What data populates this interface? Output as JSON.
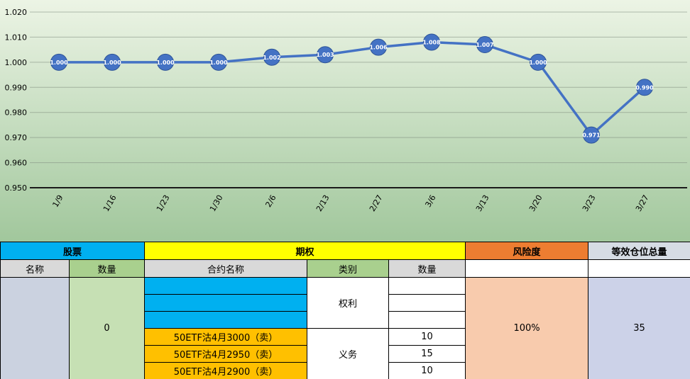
{
  "colors": {
    "line": "#4472C4",
    "gradTop": "#ECF4E5",
    "gradBottom": "#A1C79C",
    "cyan": "#00B0F0",
    "yellow": "#FFFF00",
    "orange": "#ED7D31",
    "headerBluegray": "#D6DCE4",
    "subGray": "#D9D9D9",
    "subGreen": "#A9D08E",
    "dataGreen": "#C6E0B4",
    "gold": "#FFC000",
    "riskPeach": "#F8CBAD",
    "totalLavender": "#CCD2E8",
    "stockLavender": "#CBD2E0"
  },
  "chart_data": {
    "type": "line",
    "title": "",
    "xlabel": "",
    "ylabel": "",
    "grid": true,
    "legend": false,
    "x": [
      "1/9",
      "1/16",
      "1/23",
      "1/30",
      "2/6",
      "2/13",
      "2/27",
      "3/6",
      "3/13",
      "3/20",
      "3/23",
      "3/27"
    ],
    "values": [
      1.0,
      1.0,
      1.0,
      1.0,
      1.002,
      1.003,
      1.006,
      1.008,
      1.007,
      1.0,
      0.971,
      0.99
    ],
    "point_labels": [
      "1.000",
      "1.000",
      "1.000",
      "1.000",
      "1.002",
      "1.003",
      "1.006",
      "1.008",
      "1.007",
      "1.000",
      "0.971",
      "0.990"
    ],
    "ylim": [
      0.95,
      1.02
    ],
    "yticks": [
      1.02,
      1.01,
      1.0,
      0.99,
      0.98,
      0.97,
      0.96,
      0.95
    ]
  },
  "table": {
    "header": {
      "stock": "股票",
      "option": "期权",
      "risk": "风险度",
      "total": "等效仓位总量"
    },
    "subheader": {
      "stock_name": "名称",
      "stock_qty": "数量",
      "contract_name": "合约名称",
      "category": "类别",
      "option_qty": "数量"
    },
    "stock": {
      "name": "",
      "qty": "0"
    },
    "categories": {
      "rights": "权利",
      "obligations": "义务"
    },
    "option_rows": [
      {
        "contract": "",
        "qty": ""
      },
      {
        "contract": "",
        "qty": ""
      },
      {
        "contract": "",
        "qty": ""
      },
      {
        "contract": "50ETF沽4月3000（卖）",
        "qty": "10"
      },
      {
        "contract": "50ETF沽4月2950（卖）",
        "qty": "15"
      },
      {
        "contract": "50ETF沽4月2900（卖）",
        "qty": "10"
      }
    ],
    "risk_value": "100%",
    "total_value": "35"
  }
}
